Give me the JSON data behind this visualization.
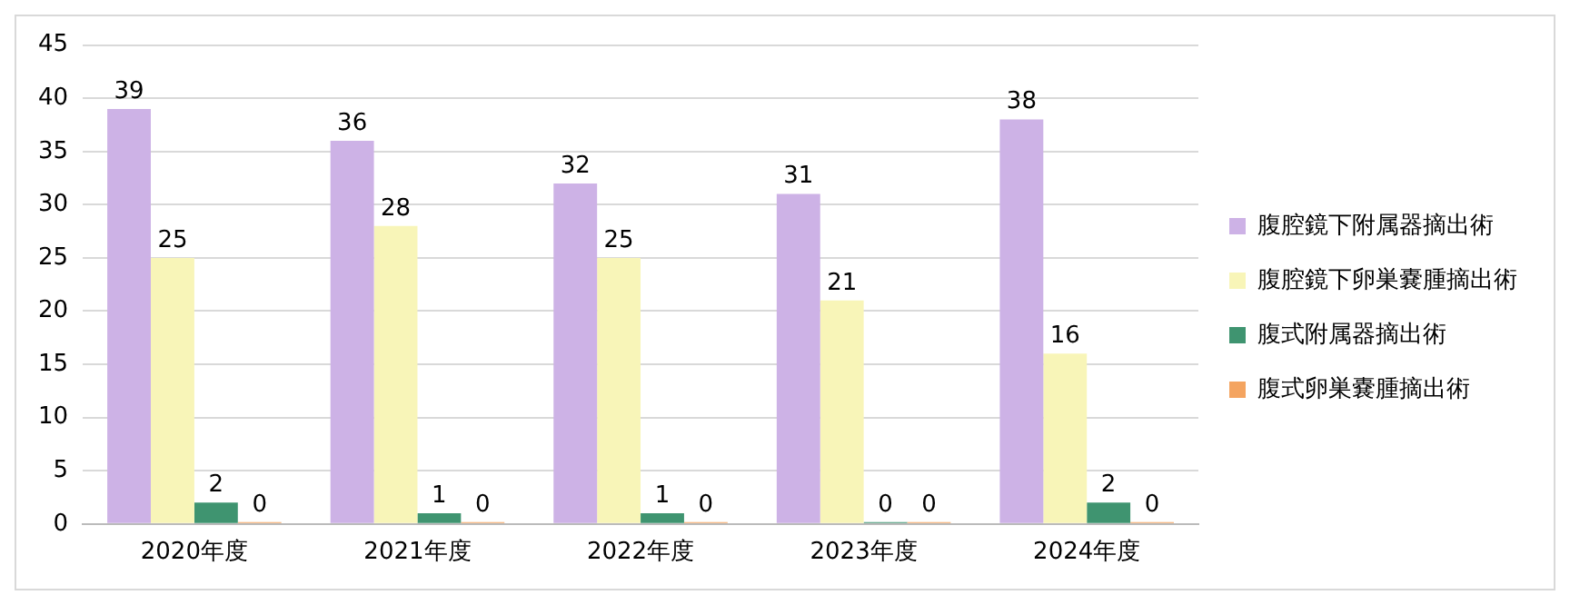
{
  "chart_data": {
    "type": "bar",
    "categories": [
      "2020年度",
      "2021年度",
      "2022年度",
      "2023年度",
      "2024年度"
    ],
    "series": [
      {
        "name": "腹腔鏡下附属器摘出術",
        "color": "#cdb2e6",
        "values": [
          39,
          36,
          32,
          31,
          38
        ]
      },
      {
        "name": "腹腔鏡下卵巣嚢腫摘出術",
        "color": "#f8f5b8",
        "values": [
          25,
          28,
          25,
          21,
          16
        ]
      },
      {
        "name": "腹式附属器摘出術",
        "color": "#3f9470",
        "values": [
          2,
          1,
          1,
          0,
          2
        ]
      },
      {
        "name": "腹式卵巣嚢腫摘出術",
        "color": "#f4a460",
        "values": [
          0,
          0,
          0,
          0,
          0
        ]
      }
    ],
    "ylim": [
      0,
      45
    ],
    "yticks": [
      0,
      5,
      10,
      15,
      20,
      25,
      30,
      35,
      40,
      45
    ],
    "grid": "y",
    "legend": "right",
    "data_labels": true
  }
}
